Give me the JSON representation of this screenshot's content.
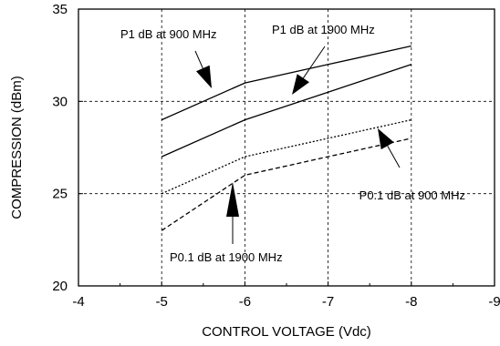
{
  "chart_data": {
    "type": "line",
    "title": "",
    "xlabel": "CONTROL VOLTAGE (Vdc)",
    "ylabel": "COMPRESSION (dBm)",
    "xlim": [
      -4,
      -9
    ],
    "ylim": [
      20,
      35
    ],
    "x_ticks": [
      -4,
      -5,
      -6,
      -7,
      -8,
      -9
    ],
    "y_ticks": [
      20,
      25,
      30,
      35
    ],
    "x_tick_labels": [
      "-4",
      "-5",
      "-6",
      "-7",
      "-8",
      "-9"
    ],
    "y_tick_labels": [
      "20",
      "25",
      "30",
      "35"
    ],
    "grid": "dashed at x = -5, -6, -7, -8 and y = 25, 30",
    "legend": "none",
    "series": [
      {
        "name": "P1 dB at 900 MHz",
        "x": [
          -5,
          -6,
          -7,
          -8
        ],
        "y": [
          29,
          31,
          32,
          33
        ],
        "style": "solid"
      },
      {
        "name": "P1 dB at 1900 MHz",
        "x": [
          -5,
          -6,
          -7,
          -8
        ],
        "y": [
          27,
          29,
          30.5,
          32
        ],
        "style": "solid"
      },
      {
        "name": "P0.1 dB at 900 MHz",
        "x": [
          -5,
          -6,
          -7,
          -8
        ],
        "y": [
          25,
          27,
          28,
          29
        ],
        "style": "dotted"
      },
      {
        "name": "P0.1 dB at 1900 MHz",
        "x": [
          -5,
          -6,
          -7,
          -8
        ],
        "y": [
          23,
          26,
          27,
          28
        ],
        "style": "dashed"
      }
    ],
    "annotations": [
      {
        "text": "P1 dB at 900 MHz",
        "series": 0
      },
      {
        "text": "P1 dB at 1900 MHz",
        "series": 1
      },
      {
        "text": "P0.1 dB at 900 MHz",
        "series": 2
      },
      {
        "text": "P0.1 dB at 1900 MHz",
        "series": 3
      }
    ]
  }
}
